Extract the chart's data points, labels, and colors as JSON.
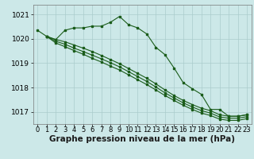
{
  "background_color": "#cce8e8",
  "grid_color": "#aacccc",
  "line_color": "#1a5c1a",
  "xlabel": "Graphe pression niveau de la mer (hPa)",
  "xlabel_fontsize": 7.5,
  "tick_fontsize": 6,
  "ylim": [
    1016.5,
    1021.4
  ],
  "xlim": [
    -0.5,
    23.5
  ],
  "yticks": [
    1017,
    1018,
    1019,
    1020,
    1021
  ],
  "xticks": [
    0,
    1,
    2,
    3,
    4,
    5,
    6,
    7,
    8,
    9,
    10,
    11,
    12,
    13,
    14,
    15,
    16,
    17,
    18,
    19,
    20,
    21,
    22,
    23
  ],
  "line1_x": [
    0,
    1,
    2,
    3,
    4,
    5,
    6,
    7,
    8,
    9,
    10,
    11,
    12,
    13,
    14,
    15,
    16,
    17,
    18,
    19,
    20,
    21,
    22,
    23
  ],
  "line1_y": [
    1020.35,
    1020.1,
    1019.97,
    1020.35,
    1020.45,
    1020.45,
    1020.52,
    1020.52,
    1020.68,
    1020.92,
    1020.58,
    1020.45,
    1020.2,
    1019.65,
    1019.35,
    1018.8,
    1018.2,
    1017.95,
    1017.72,
    1017.1,
    1017.1,
    1016.82,
    1016.82,
    1016.88
  ],
  "line2_x": [
    1,
    2,
    3,
    4,
    5,
    6,
    7,
    8,
    9,
    10,
    11,
    12,
    13,
    14,
    15,
    16,
    17,
    18,
    19,
    20,
    21,
    22,
    23
  ],
  "line2_y": [
    1020.1,
    1019.97,
    1019.88,
    1019.75,
    1019.62,
    1019.48,
    1019.32,
    1019.15,
    1018.98,
    1018.78,
    1018.58,
    1018.38,
    1018.15,
    1017.9,
    1017.67,
    1017.47,
    1017.3,
    1017.15,
    1017.05,
    1016.88,
    1016.82,
    1016.82,
    1016.88
  ],
  "line3_x": [
    1,
    2,
    3,
    4,
    5,
    6,
    7,
    8,
    9,
    10,
    11,
    12,
    13,
    14,
    15,
    16,
    17,
    18,
    19,
    20,
    21,
    22,
    23
  ],
  "line3_y": [
    1020.1,
    1019.9,
    1019.78,
    1019.62,
    1019.48,
    1019.33,
    1019.18,
    1019.02,
    1018.85,
    1018.65,
    1018.45,
    1018.25,
    1018.02,
    1017.78,
    1017.57,
    1017.37,
    1017.2,
    1017.05,
    1016.95,
    1016.79,
    1016.74,
    1016.74,
    1016.8
  ],
  "line4_x": [
    1,
    2,
    3,
    4,
    5,
    6,
    7,
    8,
    9,
    10,
    11,
    12,
    13,
    14,
    15,
    16,
    17,
    18,
    19,
    20,
    21,
    22,
    23
  ],
  "line4_y": [
    1020.1,
    1019.83,
    1019.68,
    1019.52,
    1019.37,
    1019.2,
    1019.05,
    1018.88,
    1018.72,
    1018.52,
    1018.32,
    1018.12,
    1017.9,
    1017.67,
    1017.47,
    1017.27,
    1017.1,
    1016.95,
    1016.85,
    1016.7,
    1016.65,
    1016.65,
    1016.72
  ]
}
